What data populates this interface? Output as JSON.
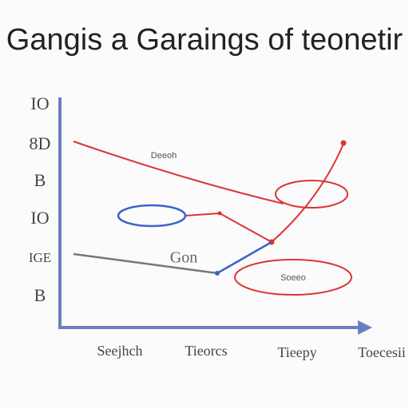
{
  "header": {
    "title": "Gangis a Garaings of teonetir"
  },
  "y_axis": {
    "labels": [
      "IO",
      "8D",
      "B",
      "IO",
      "IGE",
      "B"
    ]
  },
  "x_axis": {
    "labels": [
      "Seejhch",
      "Tieorcs",
      "Tieepy",
      "Toecesii"
    ]
  },
  "annotations": [
    "Deeoh",
    "Gon",
    "Soeeo"
  ]
}
